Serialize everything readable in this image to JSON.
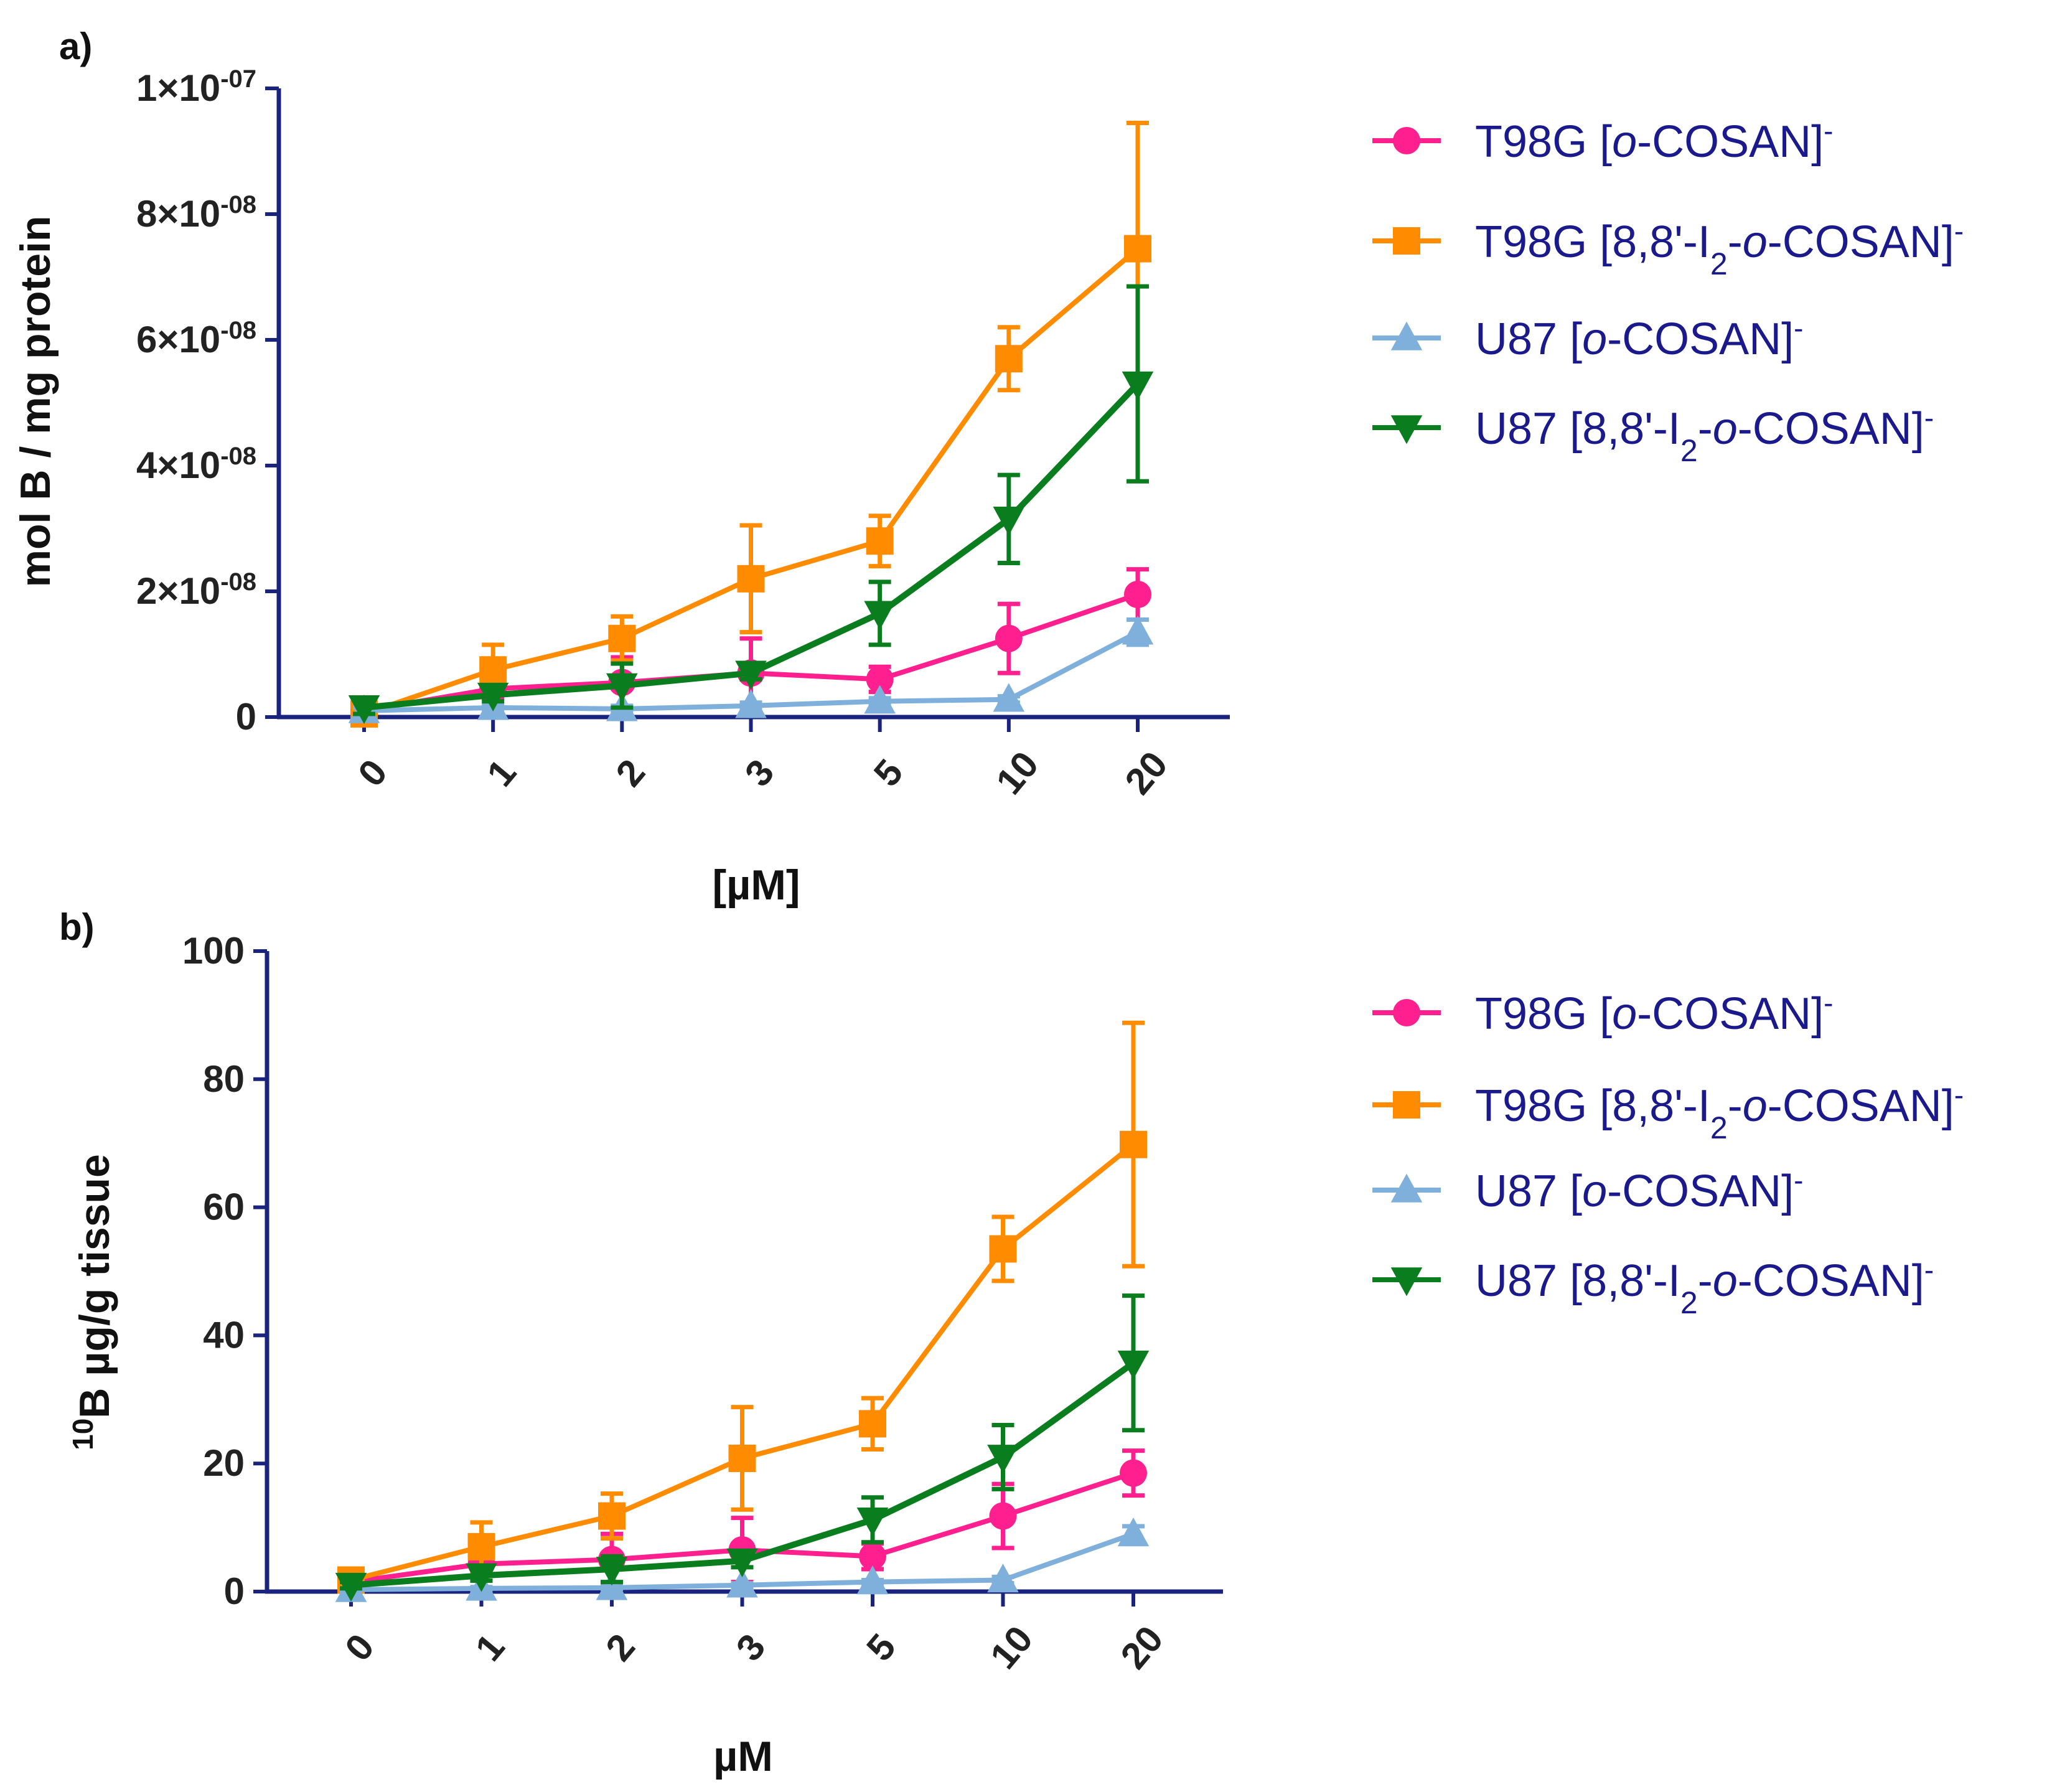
{
  "colors": {
    "axis": "#1a237e",
    "legend_text": "#1a1a8c"
  },
  "chart_data": [
    {
      "type": "line",
      "panel_label": "a)",
      "xlabel": "[µM]",
      "ylabel": "mol B / mg protein",
      "categories": [
        "0",
        "1",
        "2",
        "3",
        "5",
        "10",
        "20"
      ],
      "ylim": [
        0,
        1e-07
      ],
      "yticks": [
        {
          "value": 0,
          "base": "0",
          "exp": ""
        },
        {
          "value": 2e-08,
          "base": "2×10",
          "exp": "-08"
        },
        {
          "value": 4e-08,
          "base": "4×10",
          "exp": "-08"
        },
        {
          "value": 6e-08,
          "base": "6×10",
          "exp": "-08"
        },
        {
          "value": 8e-08,
          "base": "8×10",
          "exp": "-08"
        },
        {
          "value": 1e-07,
          "base": "1×10",
          "exp": "-07"
        }
      ],
      "legend_position": "right",
      "series": [
        {
          "name": "T98G [o-COSAN]-",
          "color": "#ff1f8e",
          "marker": "circle",
          "values": [
            1e-09,
            4.5e-09,
            5.5e-09,
            7e-09,
            6e-09,
            1.25e-08,
            1.95e-08
          ],
          "errors": [
            1e-09,
            1.5e-09,
            4e-09,
            5.5e-09,
            2e-09,
            5.5e-09,
            4e-09
          ]
        },
        {
          "name": "T98G [8,8'-I2-o-COSAN]-",
          "color": "#ff8c00",
          "marker": "square",
          "values": [
            5e-10,
            7.5e-09,
            1.25e-08,
            2.2e-08,
            2.8e-08,
            5.7e-08,
            7.45e-08
          ],
          "errors": [
            1e-09,
            4e-09,
            3.5e-09,
            8.5e-09,
            4e-09,
            5e-09,
            2e-08
          ]
        },
        {
          "name": "U87  [o-COSAN]-",
          "color": "#7fb0dc",
          "marker": "triangle-up",
          "values": [
            1e-09,
            1.5e-09,
            1.3e-09,
            1.8e-09,
            2.5e-09,
            2.8e-09,
            1.35e-08
          ],
          "errors": [
            5e-10,
            5e-10,
            5e-10,
            5e-10,
            5e-10,
            5e-10,
            2e-09
          ]
        },
        {
          "name": "U87 [8,8'-I2-o-COSAN]-",
          "color": "#0a7d1e",
          "marker": "triangle-down",
          "values": [
            1.5e-09,
            3.5e-09,
            5e-09,
            7e-09,
            1.65e-08,
            3.15e-08,
            5.3e-08
          ],
          "errors": [
            1e-09,
            1e-09,
            3.5e-09,
            1e-09,
            5e-09,
            7e-09,
            1.55e-08
          ]
        }
      ]
    },
    {
      "type": "line",
      "panel_label": "b)",
      "xlabel": "µM",
      "ylabel_sup": "10",
      "ylabel": "B µg/g tissue",
      "categories": [
        "0",
        "1",
        "2",
        "3",
        "5",
        "10",
        "20"
      ],
      "ylim": [
        0,
        100
      ],
      "yticks": [
        {
          "value": 0,
          "base": "0",
          "exp": ""
        },
        {
          "value": 20,
          "base": "20",
          "exp": ""
        },
        {
          "value": 40,
          "base": "40",
          "exp": ""
        },
        {
          "value": 60,
          "base": "60",
          "exp": ""
        },
        {
          "value": 80,
          "base": "80",
          "exp": ""
        },
        {
          "value": 100,
          "base": "100",
          "exp": ""
        }
      ],
      "legend_position": "right",
      "series": [
        {
          "name": "T98G [o-COSAN]-",
          "color": "#ff1f8e",
          "marker": "circle",
          "values": [
            1.5,
            4.3,
            5.0,
            6.5,
            5.5,
            11.8,
            18.5
          ],
          "errors": [
            0.5,
            1,
            4,
            5,
            2,
            5,
            3.5
          ]
        },
        {
          "name": "T98G [8,8'-I2-o-COSAN]-",
          "color": "#ff8c00",
          "marker": "square",
          "values": [
            1.8,
            7,
            11.8,
            20.8,
            26.2,
            53.5,
            69.8
          ],
          "errors": [
            0.8,
            3.8,
            3.5,
            8,
            4,
            5,
            19
          ]
        },
        {
          "name": "U87 [o-COSAN]-",
          "color": "#7fb0dc",
          "marker": "triangle-up",
          "values": [
            0.3,
            0.5,
            0.6,
            1,
            1.5,
            1.8,
            9
          ],
          "errors": [
            0.2,
            0.2,
            0.2,
            0.3,
            0.3,
            0.5,
            1.2
          ]
        },
        {
          "name": "U87 [8,8'-I2-o-COSAN]-",
          "color": "#0a7d1e",
          "marker": "triangle-down",
          "values": [
            1,
            2.5,
            3.5,
            4.8,
            11.2,
            21,
            35.7
          ],
          "errors": [
            0.5,
            0.8,
            2,
            1,
            3.5,
            5,
            10.5
          ]
        }
      ]
    }
  ]
}
